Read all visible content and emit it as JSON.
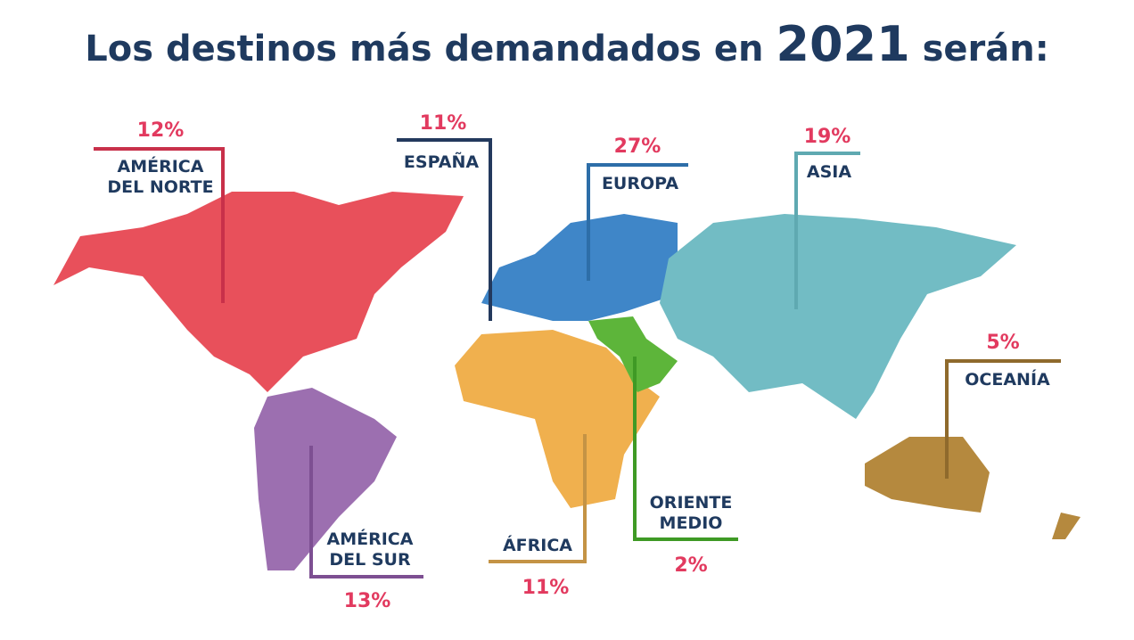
{
  "title": {
    "before": "Los destinos más demandados en",
    "year": "2021",
    "after": "serán:"
  },
  "regions": [
    {
      "name": [
        "AMÉRICA",
        "DEL NORTE"
      ],
      "percent": "12%"
    },
    {
      "name": [
        "ESPAÑA"
      ],
      "percent": "11%"
    },
    {
      "name": [
        "EUROPA"
      ],
      "percent": "27%"
    },
    {
      "name": [
        "ASIA"
      ],
      "percent": "19%"
    },
    {
      "name": [
        "OCEANÍA"
      ],
      "percent": "5%"
    },
    {
      "name": [
        "ORIENTE",
        "MEDIO"
      ],
      "percent": "2%"
    },
    {
      "name": [
        "ÁFRICA"
      ],
      "percent": "11%"
    },
    {
      "name": [
        "AMÉRICA",
        "DEL SUR"
      ],
      "percent": "13%"
    }
  ]
}
